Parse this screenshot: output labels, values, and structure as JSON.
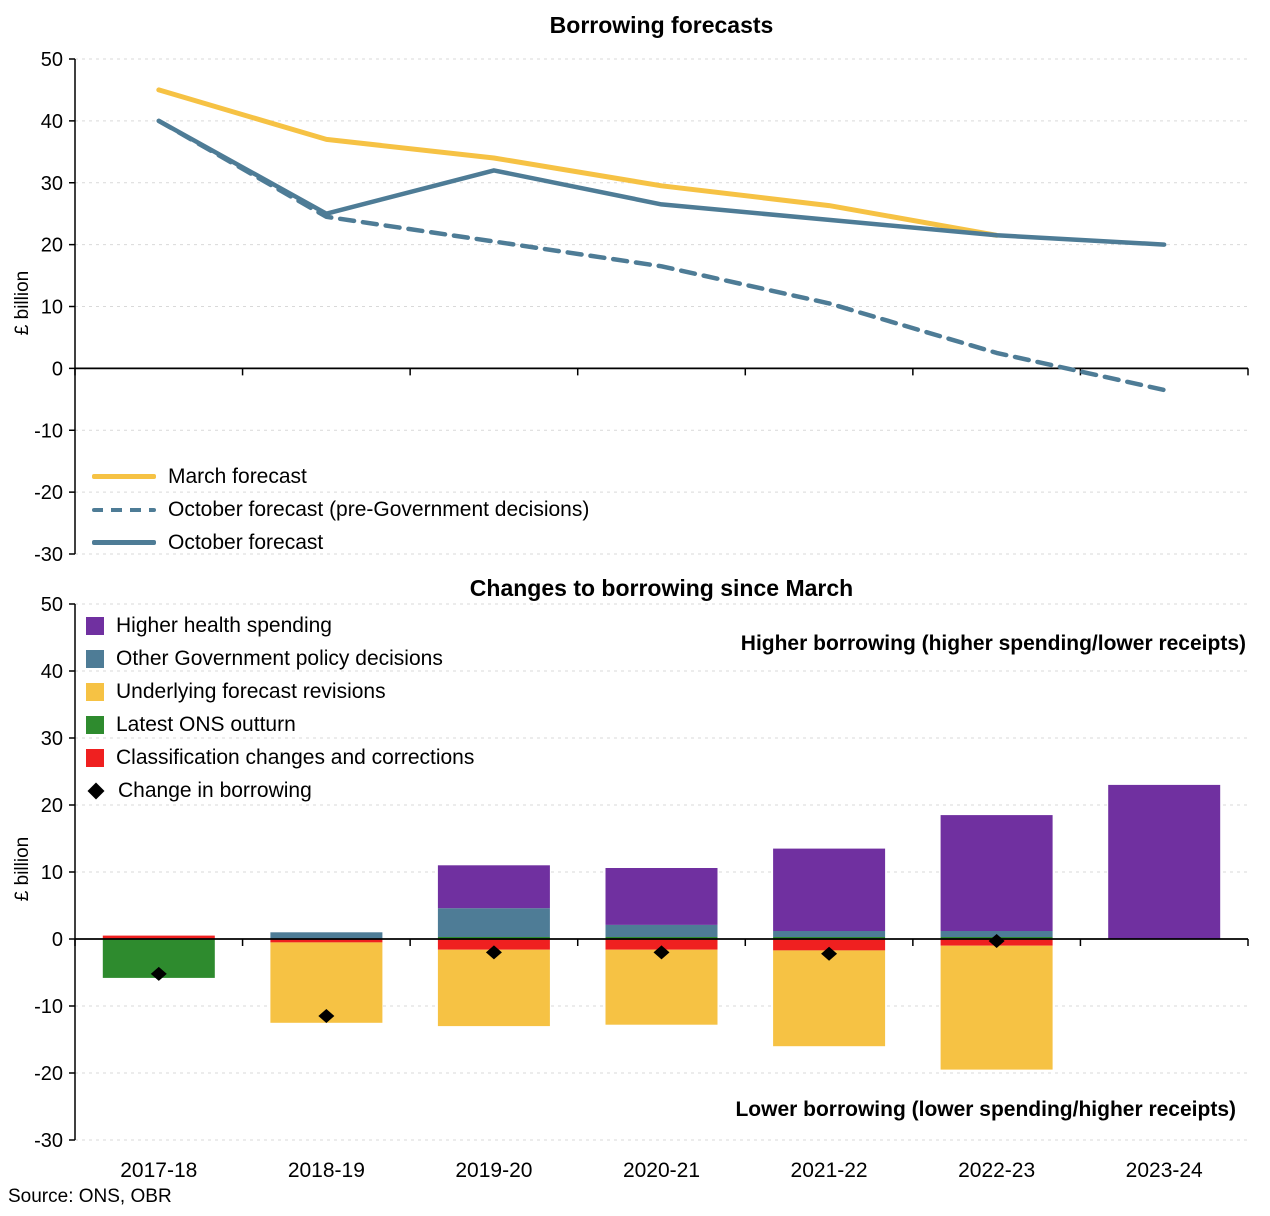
{
  "source": "Source: ONS, OBR",
  "chart_data": [
    {
      "type": "line",
      "title": "Borrowing forecasts",
      "ylabel": "£ billion",
      "x": [
        "2017-18",
        "2018-19",
        "2019-20",
        "2020-21",
        "2021-22",
        "2022-23",
        "2023-24"
      ],
      "ylim": [
        -30,
        50
      ],
      "yticks": [
        50,
        40,
        30,
        20,
        10,
        0,
        -10,
        -20,
        -30
      ],
      "grid": "dashed-horizontal",
      "legend_position": "bottom-left-inside",
      "series": [
        {
          "name": "March forecast",
          "style": "solid",
          "color": "#F6C244",
          "width": 5,
          "values": [
            45,
            37,
            34,
            29.5,
            26.3,
            21.5,
            null
          ]
        },
        {
          "name": "October forecast (pre-Government decisions)",
          "style": "dashed",
          "color": "#4E7C96",
          "width": 4.5,
          "values": [
            40,
            24.5,
            20.5,
            16.5,
            10.5,
            2.5,
            -3.5
          ]
        },
        {
          "name": "October forecast",
          "style": "solid",
          "color": "#4E7C96",
          "width": 4.5,
          "values": [
            40,
            25,
            32,
            26.5,
            24,
            21.5,
            20
          ]
        }
      ]
    },
    {
      "type": "bar",
      "stacked": true,
      "title": "Changes to borrowing since March",
      "ylabel": "£ billion",
      "categories": [
        "2017-18",
        "2018-19",
        "2019-20",
        "2020-21",
        "2021-22",
        "2022-23",
        "2023-24"
      ],
      "ylim": [
        -30,
        50
      ],
      "yticks": [
        50,
        40,
        30,
        20,
        10,
        0,
        -10,
        -20,
        -30
      ],
      "grid": "dashed-horizontal",
      "legend_position": "top-left-inside",
      "series": [
        {
          "name": "Higher health spending",
          "color": "#7030A0",
          "values": [
            0,
            0,
            6.4,
            8.5,
            12.3,
            17.3,
            23
          ]
        },
        {
          "name": "Other Government policy decisions",
          "color": "#4E7C96",
          "values": [
            0,
            1.0,
            4.3,
            1.8,
            0.9,
            0.9,
            0
          ]
        },
        {
          "name": "Underlying forecast revisions",
          "color": "#F6C244",
          "values": [
            0,
            -12.0,
            -11.4,
            -11.2,
            -14.3,
            -18.5,
            0
          ]
        },
        {
          "name": "Latest ONS outturn",
          "color": "#2E8B2E",
          "values": [
            -5.8,
            0,
            0.3,
            0.3,
            0.3,
            0.3,
            0
          ]
        },
        {
          "name": "Classification changes and corrections",
          "color": "#EF2020",
          "values": [
            0.5,
            -0.5,
            -1.6,
            -1.6,
            -1.7,
            -1.0,
            0
          ]
        },
        {
          "name": "Change in borrowing",
          "type": "scatter-diamond",
          "color": "#000000",
          "values": [
            -5.2,
            -11.5,
            -2.0,
            -2.0,
            -2.2,
            -0.3,
            null
          ]
        }
      ],
      "annotations": {
        "higher": "Higher borrowing (higher spending/lower receipts)",
        "lower": "Lower borrowing (lower spending/higher receipts)"
      }
    }
  ]
}
